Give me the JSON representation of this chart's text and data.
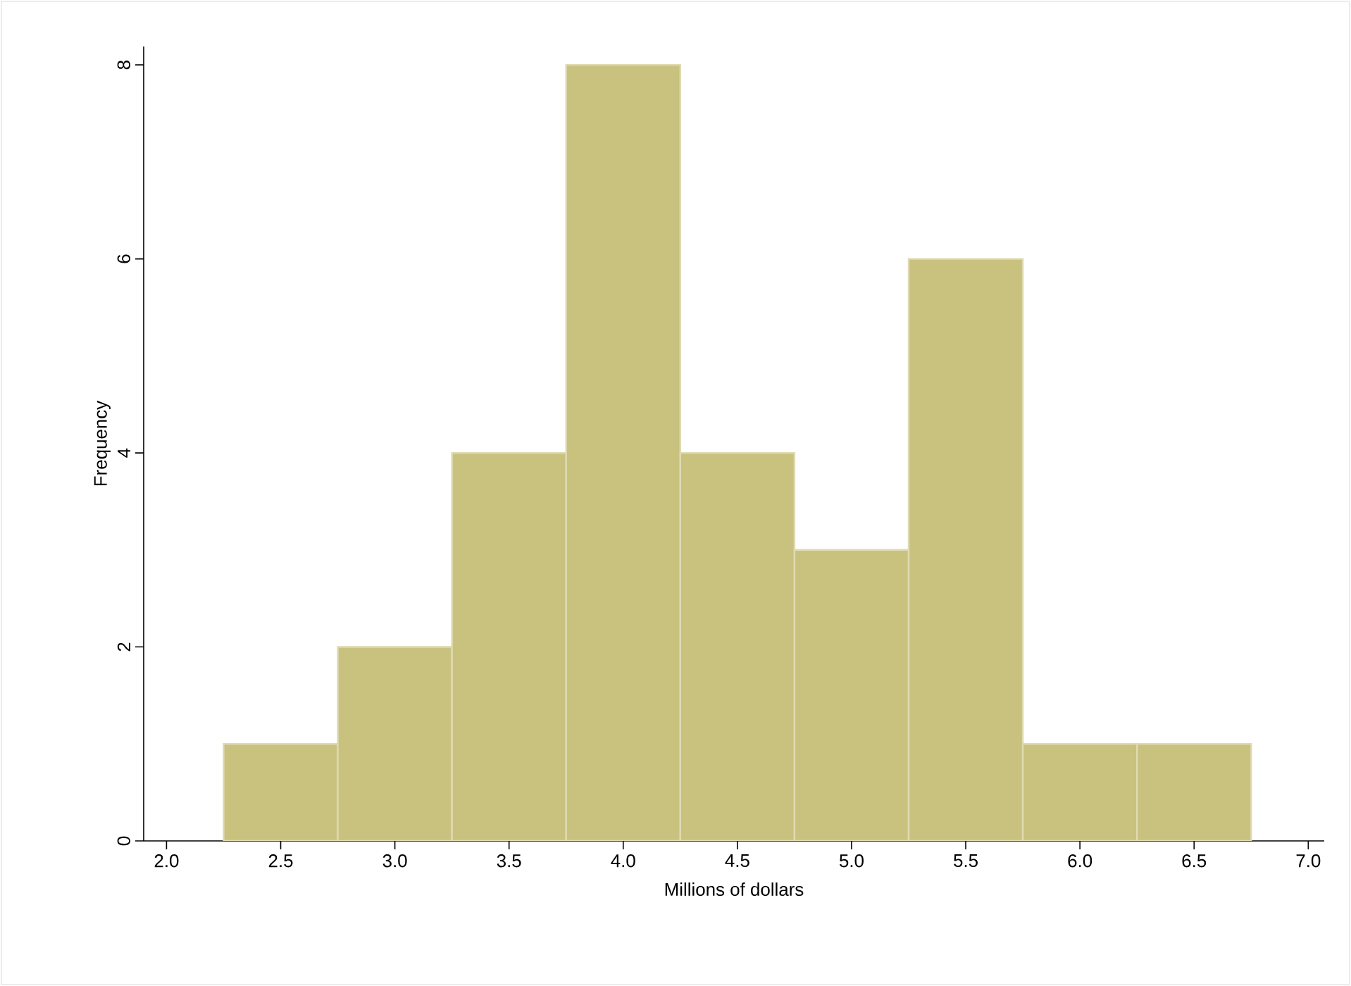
{
  "chart_data": {
    "type": "histogram",
    "xlabel": "Millions of dollars",
    "ylabel": "Frequency",
    "bins": [
      2.25,
      2.75,
      3.25,
      3.75,
      4.25,
      4.75,
      5.25,
      5.75,
      6.25,
      6.75
    ],
    "values": [
      1,
      2,
      4,
      8,
      4,
      3,
      6,
      1,
      1
    ],
    "color": "#c9c27f",
    "xlim": [
      1.9,
      7.07
    ],
    "ylim": [
      0,
      8.19
    ],
    "xticks": [
      {
        "value": 2.0,
        "label": "2.0"
      },
      {
        "value": 2.5,
        "label": "2.5"
      },
      {
        "value": 3.0,
        "label": "3.0"
      },
      {
        "value": 3.5,
        "label": "3.5"
      },
      {
        "value": 4.0,
        "label": "4.0"
      },
      {
        "value": 4.5,
        "label": "4.5"
      },
      {
        "value": 5.0,
        "label": "5.0"
      },
      {
        "value": 5.5,
        "label": "5.5"
      },
      {
        "value": 6.0,
        "label": "6.0"
      },
      {
        "value": 6.5,
        "label": "6.5"
      },
      {
        "value": 7.0,
        "label": "7.0"
      }
    ],
    "yticks": [
      0,
      2,
      4,
      6,
      8
    ]
  }
}
